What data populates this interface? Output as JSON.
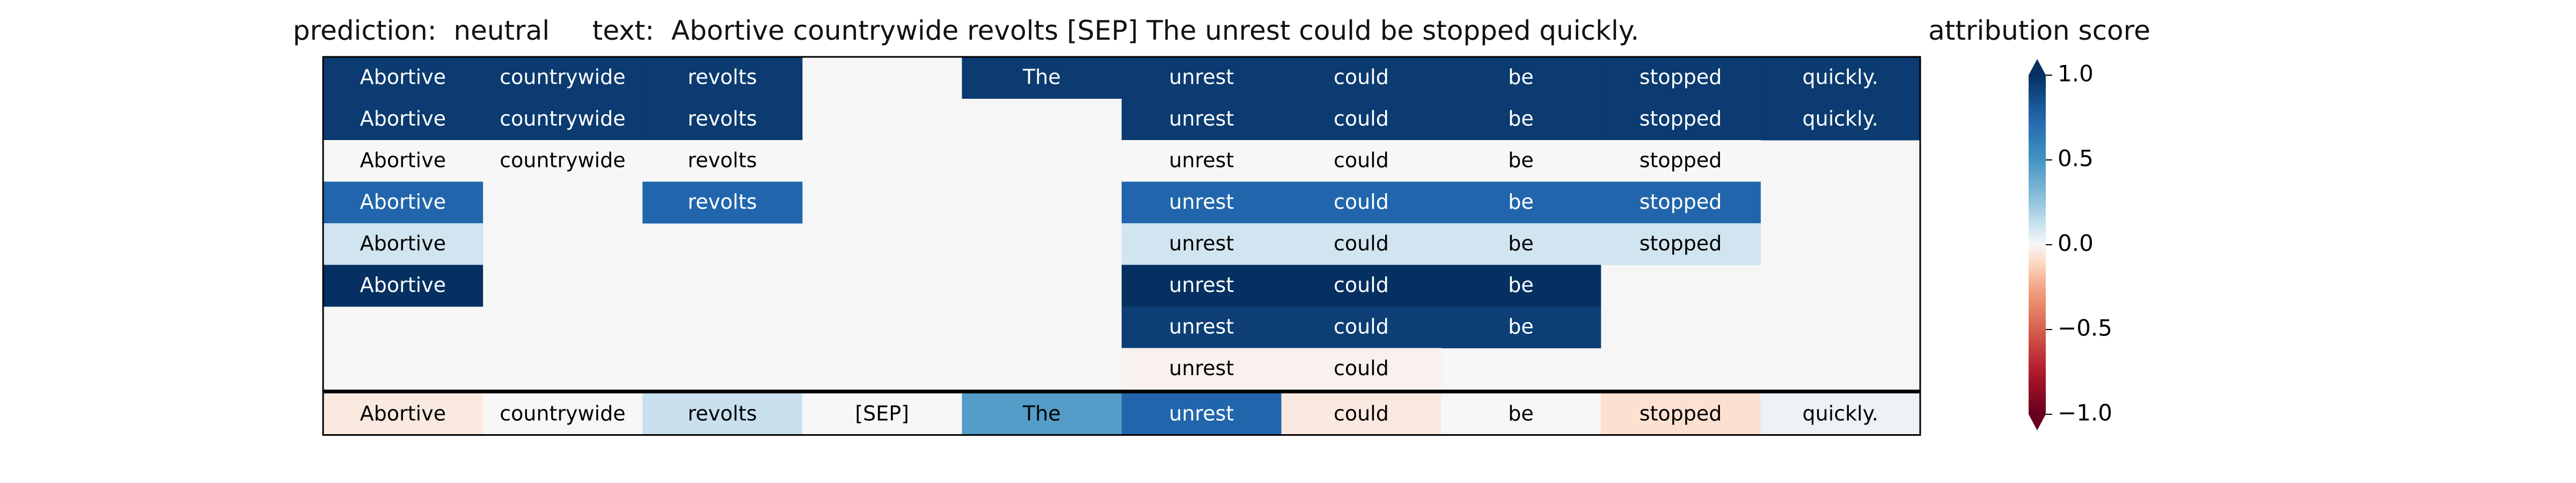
{
  "title": {
    "prediction_label": "prediction:",
    "prediction": "neutral",
    "text_label": "text:",
    "text": "Abortive countrywide revolts [SEP] The unrest could be stopped quickly."
  },
  "colorbar": {
    "title": "attribution score",
    "ticks": [
      "1.0",
      "0.5",
      "0.0",
      "−0.5",
      "−1.0"
    ],
    "tick_values": [
      1.0,
      0.5,
      0.0,
      -0.5,
      -1.0
    ],
    "range": [
      -1.0,
      1.0
    ],
    "colormap": "RdBu",
    "extend": "both"
  },
  "colors": {
    "grid_background": "#f5f6f5",
    "border": "#000000",
    "text_dark": "#000000",
    "text_light": "#ffffff"
  },
  "chart_data": {
    "type": "heatmap",
    "title": "prediction:  neutral     text:  Abortive countrywide revolts [SEP] The unrest could be stopped quickly.",
    "tokens": [
      "Abortive",
      "countrywide",
      "revolts",
      "[SEP]",
      "The",
      "unrest",
      "could",
      "be",
      "stopped",
      "quickly."
    ],
    "rows": [
      {
        "values": [
          0.95,
          0.95,
          0.95,
          null,
          0.95,
          0.95,
          0.95,
          0.95,
          0.95,
          0.95
        ],
        "labels": [
          "Abortive",
          "countrywide",
          "revolts",
          "",
          "The",
          "unrest",
          "could",
          "be",
          "stopped",
          "quickly."
        ]
      },
      {
        "values": [
          0.95,
          0.95,
          0.95,
          null,
          null,
          0.95,
          0.95,
          0.95,
          0.95,
          0.95
        ],
        "labels": [
          "Abortive",
          "countrywide",
          "revolts",
          "",
          "",
          "unrest",
          "could",
          "be",
          "stopped",
          "quickly."
        ]
      },
      {
        "values": [
          0.0,
          0.0,
          0.0,
          null,
          null,
          0.0,
          0.0,
          0.0,
          0.0,
          null
        ],
        "labels": [
          "Abortive",
          "countrywide",
          "revolts",
          "",
          "",
          "unrest",
          "could",
          "be",
          "stopped",
          ""
        ]
      },
      {
        "values": [
          0.75,
          null,
          0.75,
          null,
          null,
          0.75,
          0.75,
          0.75,
          0.75,
          null
        ],
        "labels": [
          "Abortive",
          "",
          "revolts",
          "",
          "",
          "unrest",
          "could",
          "be",
          "stopped",
          ""
        ]
      },
      {
        "values": [
          0.1,
          null,
          null,
          null,
          null,
          0.1,
          0.1,
          0.1,
          0.1,
          null
        ],
        "labels": [
          "Abortive",
          "",
          "",
          "",
          "",
          "unrest",
          "could",
          "be",
          "stopped",
          ""
        ]
      },
      {
        "values": [
          1.0,
          null,
          null,
          null,
          null,
          1.0,
          1.0,
          1.0,
          null,
          null
        ],
        "labels": [
          "Abortive",
          "",
          "",
          "",
          "",
          "unrest",
          "could",
          "be",
          "",
          ""
        ]
      },
      {
        "values": [
          null,
          null,
          null,
          null,
          null,
          0.93,
          0.93,
          0.93,
          null,
          null
        ],
        "labels": [
          "",
          "",
          "",
          "",
          "",
          "unrest",
          "could",
          "be",
          "",
          ""
        ]
      },
      {
        "values": [
          null,
          null,
          null,
          null,
          null,
          -0.02,
          -0.02,
          null,
          null,
          null
        ],
        "labels": [
          "",
          "",
          "",
          "",
          "",
          "unrest",
          "could",
          "",
          "",
          ""
        ]
      }
    ],
    "summary_row": {
      "values": [
        -0.05,
        0.0,
        0.12,
        0.0,
        0.45,
        0.75,
        -0.05,
        0.0,
        -0.08,
        0.03
      ],
      "labels": [
        "Abortive",
        "countrywide",
        "revolts",
        "[SEP]",
        "The",
        "unrest",
        "could",
        "be",
        "stopped",
        "quickly."
      ]
    }
  }
}
